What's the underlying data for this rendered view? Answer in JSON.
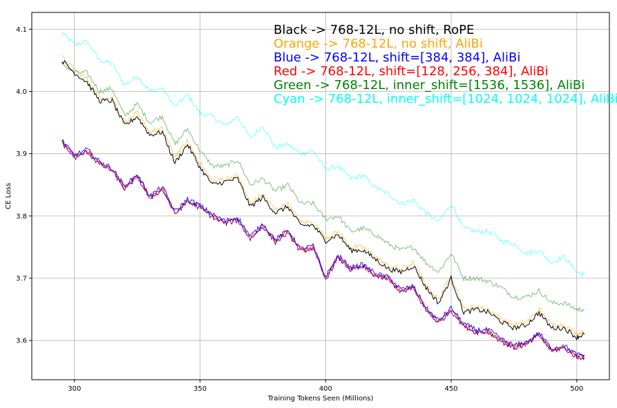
{
  "chart_data": {
    "type": "line",
    "title": "",
    "xlabel": "Training Tokens Seen (Millions)",
    "ylabel": "CE Loss",
    "xlim": [
      283,
      513
    ],
    "ylim": [
      3.537,
      4.127
    ],
    "x_ticks": [
      300,
      350,
      400,
      450,
      500
    ],
    "y_ticks": [
      3.6,
      3.7,
      3.8,
      3.9,
      4.0,
      4.1
    ],
    "x_tick_labels": [
      "300",
      "350",
      "400",
      "450",
      "500"
    ],
    "y_tick_labels": [
      "3.6",
      "3.7",
      "3.8",
      "3.9",
      "4.0",
      "4.1"
    ],
    "grid": true,
    "annotations": [
      {
        "text": "Black -> 768-12L, no shift, RoPE",
        "color": "#000000"
      },
      {
        "text": "Orange -> 768-12L, no shift, AliBi",
        "color": "#FFA500"
      },
      {
        "text": "Blue -> 768-12L, shift=[384, 384], AliBi",
        "color": "#0000FF"
      },
      {
        "text": "Red -> 768-12L, shift=[128, 256, 384], AliBi",
        "color": "#FF0000"
      },
      {
        "text": "Green -> 768-12L, inner_shift=[1536, 1536], AliBi",
        "color": "#008000"
      },
      {
        "text": "Cyan -> 768-12L, inner_shift=[1024, 1024, 1024], AliBi",
        "color": "#00FFFF"
      }
    ],
    "x": [
      295,
      300,
      305,
      310,
      315,
      320,
      325,
      330,
      335,
      340,
      345,
      350,
      355,
      360,
      365,
      370,
      375,
      380,
      385,
      390,
      395,
      400,
      405,
      410,
      415,
      420,
      425,
      430,
      435,
      440,
      445,
      450,
      455,
      460,
      465,
      470,
      475,
      480,
      485,
      490,
      495,
      500,
      503
    ],
    "series": [
      {
        "color": "#00FFFF",
        "opacity": 0.55,
        "values": [
          4.095,
          4.075,
          4.08,
          4.05,
          4.045,
          4.01,
          4.025,
          4.0,
          4.005,
          3.975,
          3.995,
          3.965,
          3.96,
          3.945,
          3.96,
          3.925,
          3.945,
          3.91,
          3.915,
          3.9,
          3.905,
          3.875,
          3.88,
          3.86,
          3.865,
          3.845,
          3.835,
          3.82,
          3.825,
          3.805,
          3.79,
          3.82,
          3.78,
          3.775,
          3.775,
          3.76,
          3.755,
          3.74,
          3.745,
          3.725,
          3.735,
          3.71,
          3.705
        ]
      },
      {
        "color": "#008000",
        "opacity": 0.5,
        "values": [
          4.045,
          4.03,
          4.03,
          4.0,
          4.005,
          3.96,
          3.98,
          3.95,
          3.96,
          3.915,
          3.94,
          3.905,
          3.88,
          3.88,
          3.89,
          3.85,
          3.86,
          3.84,
          3.85,
          3.82,
          3.82,
          3.795,
          3.8,
          3.775,
          3.78,
          3.77,
          3.755,
          3.745,
          3.75,
          3.725,
          3.71,
          3.74,
          3.7,
          3.7,
          3.695,
          3.685,
          3.67,
          3.67,
          3.68,
          3.66,
          3.66,
          3.65,
          3.65
        ]
      },
      {
        "color": "#FFA500",
        "opacity": 0.6,
        "values": [
          4.055,
          4.035,
          4.02,
          3.99,
          3.99,
          3.95,
          3.965,
          3.935,
          3.94,
          3.895,
          3.92,
          3.885,
          3.855,
          3.86,
          3.865,
          3.82,
          3.835,
          3.81,
          3.82,
          3.79,
          3.79,
          3.765,
          3.775,
          3.75,
          3.75,
          3.735,
          3.72,
          3.715,
          3.725,
          3.69,
          3.665,
          3.705,
          3.65,
          3.655,
          3.65,
          3.635,
          3.625,
          3.63,
          3.65,
          3.625,
          3.625,
          3.61,
          3.615
        ]
      },
      {
        "color": "#000000",
        "opacity": 1.0,
        "values": [
          4.05,
          4.03,
          4.015,
          3.985,
          3.985,
          3.945,
          3.96,
          3.93,
          3.935,
          3.885,
          3.915,
          3.878,
          3.85,
          3.855,
          3.86,
          3.815,
          3.83,
          3.805,
          3.815,
          3.785,
          3.785,
          3.76,
          3.77,
          3.745,
          3.745,
          3.73,
          3.715,
          3.71,
          3.72,
          3.685,
          3.66,
          3.7,
          3.645,
          3.65,
          3.645,
          3.63,
          3.62,
          3.625,
          3.645,
          3.62,
          3.62,
          3.605,
          3.61
        ]
      },
      {
        "color": "#FF0000",
        "opacity": 0.9,
        "values": [
          3.92,
          3.895,
          3.905,
          3.885,
          3.875,
          3.845,
          3.865,
          3.83,
          3.845,
          3.805,
          3.825,
          3.815,
          3.8,
          3.79,
          3.795,
          3.765,
          3.785,
          3.76,
          3.775,
          3.745,
          3.75,
          3.7,
          3.735,
          3.715,
          3.72,
          3.705,
          3.7,
          3.68,
          3.685,
          3.65,
          3.63,
          3.65,
          3.625,
          3.615,
          3.615,
          3.6,
          3.59,
          3.595,
          3.61,
          3.585,
          3.59,
          3.575,
          3.575
        ]
      },
      {
        "color": "#0000FF",
        "opacity": 0.9,
        "values": [
          3.922,
          3.897,
          3.907,
          3.887,
          3.877,
          3.847,
          3.867,
          3.832,
          3.847,
          3.807,
          3.827,
          3.817,
          3.802,
          3.792,
          3.798,
          3.767,
          3.787,
          3.762,
          3.777,
          3.747,
          3.752,
          3.702,
          3.737,
          3.717,
          3.722,
          3.707,
          3.702,
          3.682,
          3.687,
          3.652,
          3.632,
          3.652,
          3.627,
          3.617,
          3.617,
          3.602,
          3.592,
          3.597,
          3.612,
          3.587,
          3.592,
          3.577,
          3.577
        ]
      },
      {
        "color": "#800080",
        "opacity": 1.0,
        "values": [
          3.918,
          3.893,
          3.903,
          3.883,
          3.873,
          3.843,
          3.863,
          3.828,
          3.843,
          3.803,
          3.823,
          3.813,
          3.798,
          3.788,
          3.793,
          3.763,
          3.783,
          3.758,
          3.773,
          3.743,
          3.748,
          3.698,
          3.733,
          3.713,
          3.718,
          3.703,
          3.698,
          3.678,
          3.683,
          3.648,
          3.628,
          3.648,
          3.623,
          3.613,
          3.613,
          3.598,
          3.588,
          3.593,
          3.608,
          3.583,
          3.588,
          3.573,
          3.573
        ]
      }
    ]
  }
}
